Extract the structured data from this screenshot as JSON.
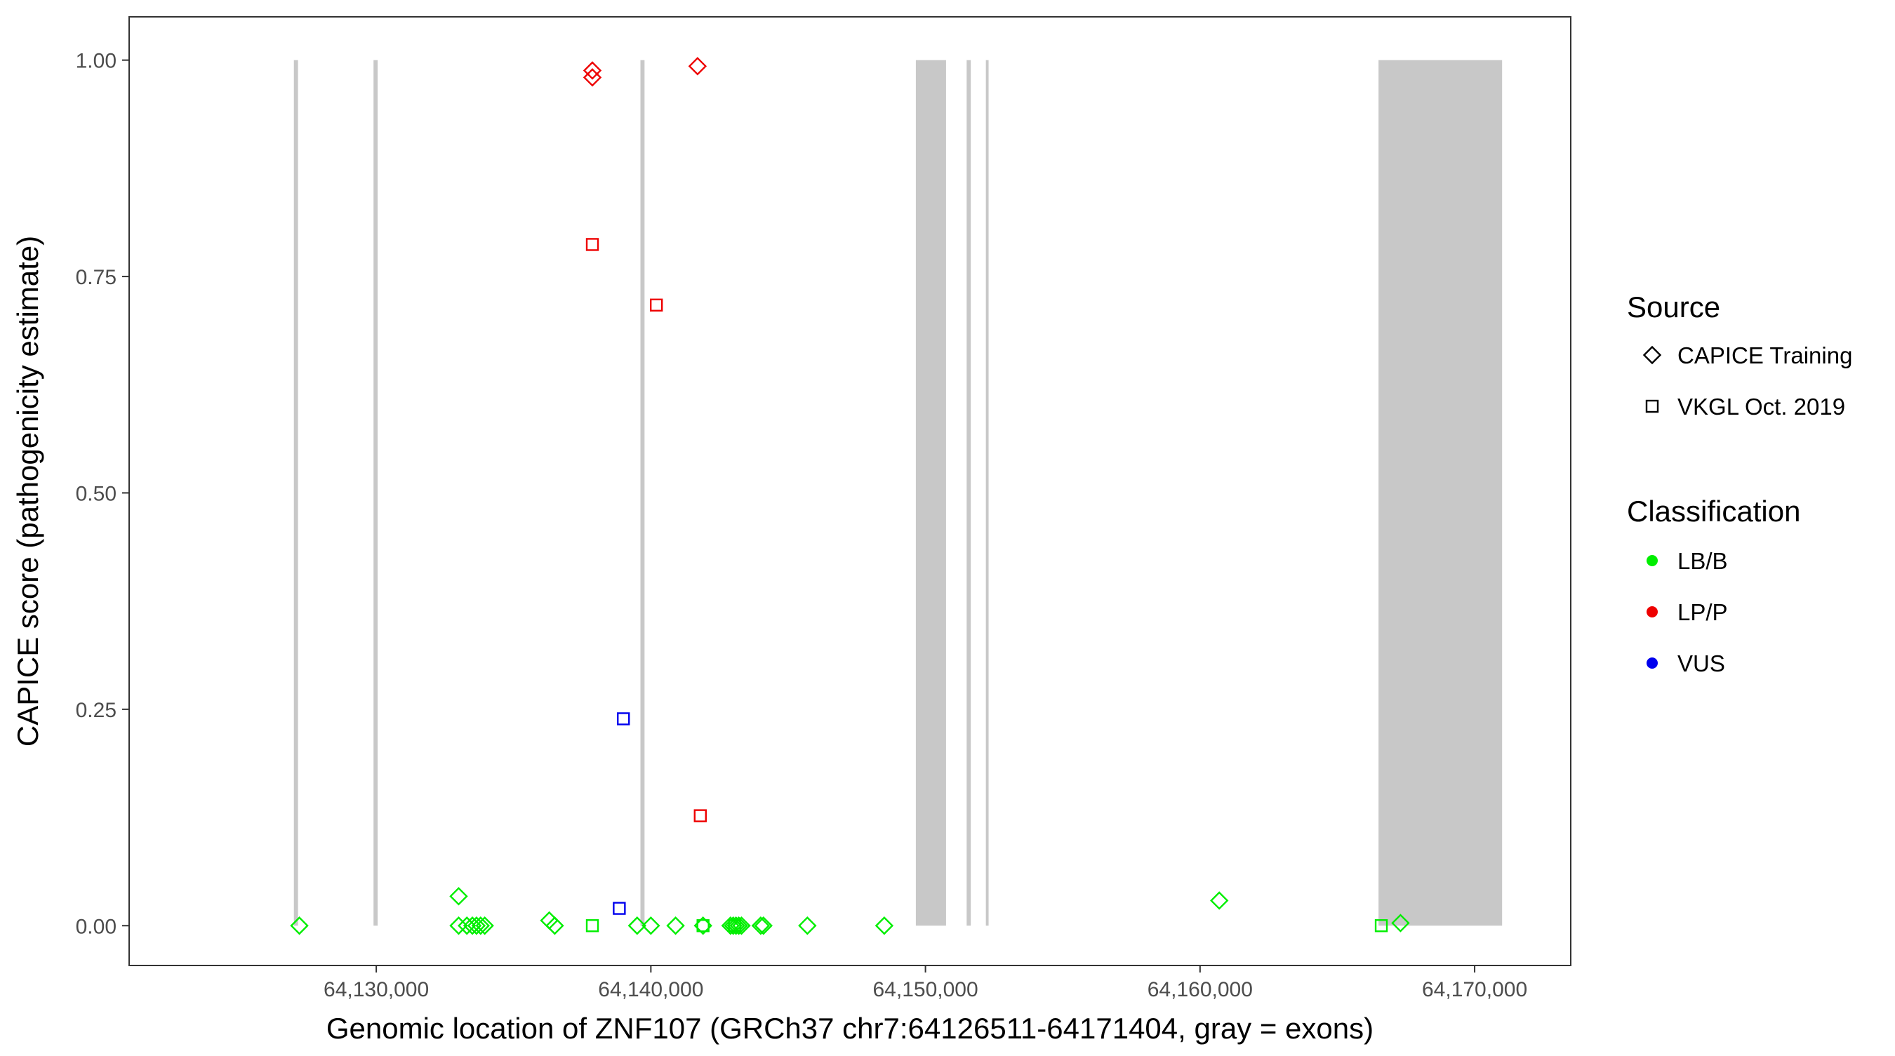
{
  "chart_data": {
    "type": "scatter",
    "xlabel": "Genomic location of ZNF107 (GRCh37 chr7:64126511-64171404, gray = exons)",
    "ylabel": "CAPICE score (pathogenicity estimate)",
    "xlim": [
      64121000,
      64173500
    ],
    "ylim": [
      -0.046,
      1.05
    ],
    "x_ticks": [
      64130000,
      64140000,
      64150000,
      64160000,
      64170000
    ],
    "x_tick_labels": [
      "64,130,000",
      "64,140,000",
      "64,150,000",
      "64,160,000",
      "64,170,000"
    ],
    "y_ticks": [
      0,
      0.25,
      0.5,
      0.75,
      1.0
    ],
    "y_tick_labels": [
      "0.00",
      "0.25",
      "0.50",
      "0.75",
      "1.00"
    ],
    "grid": false,
    "exons": [
      {
        "start": 64127000,
        "end": 64127150
      },
      {
        "start": 64129900,
        "end": 64130050
      },
      {
        "start": 64139620,
        "end": 64139770
      },
      {
        "start": 64149650,
        "end": 64150750
      },
      {
        "start": 64151500,
        "end": 64151650
      },
      {
        "start": 64152200,
        "end": 64152300
      },
      {
        "start": 64166500,
        "end": 64171000
      }
    ],
    "legend": {
      "placement": "right",
      "source_title": "Source",
      "source_items": [
        {
          "label": "CAPICE Training",
          "shape": "diamond"
        },
        {
          "label": "VKGL Oct. 2019",
          "shape": "square"
        }
      ],
      "classification_title": "Classification",
      "classification_items": [
        {
          "label": "LB/B",
          "color": "#00ee00"
        },
        {
          "label": "LP/P",
          "color": "#ee0000"
        },
        {
          "label": "VUS",
          "color": "#0000ee"
        }
      ]
    },
    "colors": {
      "LB/B": "#00ee00",
      "LP/P": "#ee0000",
      "VUS": "#0000ee",
      "exon": "#c8c8c8"
    },
    "points": [
      {
        "x": 64137870,
        "y": 0.988,
        "source": "CAPICE Training",
        "class": "LP/P"
      },
      {
        "x": 64137870,
        "y": 0.98,
        "source": "CAPICE Training",
        "class": "LP/P"
      },
      {
        "x": 64141700,
        "y": 0.993,
        "source": "CAPICE Training",
        "class": "LP/P"
      },
      {
        "x": 64137870,
        "y": 0.787,
        "source": "VKGL Oct. 2019",
        "class": "LP/P"
      },
      {
        "x": 64140200,
        "y": 0.717,
        "source": "VKGL Oct. 2019",
        "class": "LP/P"
      },
      {
        "x": 64141800,
        "y": 0.127,
        "source": "VKGL Oct. 2019",
        "class": "LP/P"
      },
      {
        "x": 64139000,
        "y": 0.239,
        "source": "VKGL Oct. 2019",
        "class": "VUS"
      },
      {
        "x": 64138850,
        "y": 0.02,
        "source": "VKGL Oct. 2019",
        "class": "VUS"
      },
      {
        "x": 64127200,
        "y": 0.0,
        "source": "CAPICE Training",
        "class": "LB/B"
      },
      {
        "x": 64133000,
        "y": 0.034,
        "source": "CAPICE Training",
        "class": "LB/B"
      },
      {
        "x": 64133000,
        "y": 0.0,
        "source": "CAPICE Training",
        "class": "LB/B"
      },
      {
        "x": 64133300,
        "y": 0.0,
        "source": "CAPICE Training",
        "class": "LB/B"
      },
      {
        "x": 64133500,
        "y": 0.0,
        "source": "CAPICE Training",
        "class": "LB/B"
      },
      {
        "x": 64133650,
        "y": 0.0,
        "source": "CAPICE Training",
        "class": "LB/B"
      },
      {
        "x": 64133800,
        "y": 0.0,
        "source": "CAPICE Training",
        "class": "LB/B"
      },
      {
        "x": 64133950,
        "y": 0.0,
        "source": "CAPICE Training",
        "class": "LB/B"
      },
      {
        "x": 64136300,
        "y": 0.006,
        "source": "CAPICE Training",
        "class": "LB/B"
      },
      {
        "x": 64136500,
        "y": 0.0,
        "source": "CAPICE Training",
        "class": "LB/B"
      },
      {
        "x": 64137870,
        "y": 0.0,
        "source": "VKGL Oct. 2019",
        "class": "LB/B"
      },
      {
        "x": 64139500,
        "y": 0.0,
        "source": "CAPICE Training",
        "class": "LB/B"
      },
      {
        "x": 64140000,
        "y": 0.0,
        "source": "CAPICE Training",
        "class": "LB/B"
      },
      {
        "x": 64140900,
        "y": 0.0,
        "source": "CAPICE Training",
        "class": "LB/B"
      },
      {
        "x": 64141900,
        "y": 0.0,
        "source": "CAPICE Training",
        "class": "LB/B"
      },
      {
        "x": 64141900,
        "y": 0.0,
        "source": "VKGL Oct. 2019",
        "class": "LB/B"
      },
      {
        "x": 64142900,
        "y": 0.0,
        "source": "CAPICE Training",
        "class": "LB/B"
      },
      {
        "x": 64143000,
        "y": 0.0,
        "source": "CAPICE Training",
        "class": "LB/B"
      },
      {
        "x": 64143100,
        "y": 0.0,
        "source": "CAPICE Training",
        "class": "LB/B"
      },
      {
        "x": 64143200,
        "y": 0.0,
        "source": "CAPICE Training",
        "class": "LB/B"
      },
      {
        "x": 64143300,
        "y": 0.0,
        "source": "CAPICE Training",
        "class": "LB/B"
      },
      {
        "x": 64143050,
        "y": 0.0,
        "source": "VKGL Oct. 2019",
        "class": "LB/B"
      },
      {
        "x": 64144000,
        "y": 0.0,
        "source": "CAPICE Training",
        "class": "LB/B"
      },
      {
        "x": 64144100,
        "y": 0.0,
        "source": "CAPICE Training",
        "class": "LB/B"
      },
      {
        "x": 64145700,
        "y": 0.0,
        "source": "CAPICE Training",
        "class": "LB/B"
      },
      {
        "x": 64148500,
        "y": 0.0,
        "source": "CAPICE Training",
        "class": "LB/B"
      },
      {
        "x": 64160700,
        "y": 0.029,
        "source": "CAPICE Training",
        "class": "LB/B"
      },
      {
        "x": 64166600,
        "y": 0.0,
        "source": "VKGL Oct. 2019",
        "class": "LB/B"
      },
      {
        "x": 64167300,
        "y": 0.003,
        "source": "CAPICE Training",
        "class": "LB/B"
      }
    ]
  }
}
